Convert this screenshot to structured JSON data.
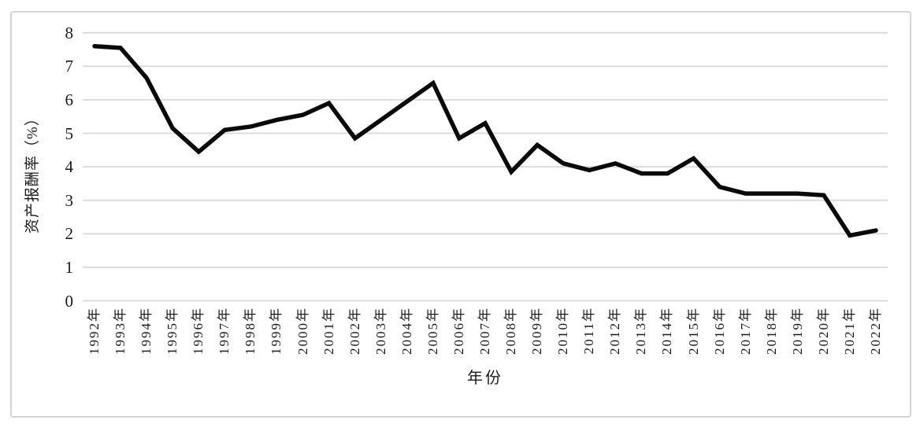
{
  "chart_data": {
    "type": "line",
    "xlabel": "年份",
    "ylabel": "资产报酬率（%）",
    "categories": [
      "1992年",
      "1993年",
      "1994年",
      "1995年",
      "1996年",
      "1997年",
      "1998年",
      "1999年",
      "2000年",
      "2001年",
      "2002年",
      "2003年",
      "2004年",
      "2005年",
      "2006年",
      "2007年",
      "2008年",
      "2009年",
      "2010年",
      "2011年",
      "2012年",
      "2013年",
      "2014年",
      "2015年",
      "2016年",
      "2017年",
      "2018年",
      "2019年",
      "2020年",
      "2021年",
      "2022年"
    ],
    "values": [
      7.6,
      7.55,
      6.65,
      5.15,
      4.45,
      5.1,
      5.2,
      5.4,
      5.55,
      5.9,
      4.85,
      5.4,
      5.95,
      6.5,
      4.85,
      5.3,
      3.85,
      4.65,
      4.1,
      3.9,
      4.1,
      3.8,
      3.8,
      4.25,
      3.4,
      3.2,
      3.2,
      3.2,
      3.15,
      1.95,
      2.1
    ],
    "yticks": [
      0,
      1,
      2,
      3,
      4,
      5,
      6,
      7,
      8
    ],
    "ylim": [
      0,
      8
    ],
    "grid": true,
    "legend": "none",
    "line_color": "#0a0a0a",
    "grid_color": "#d9d9d9",
    "text_color": "#1a1a1a",
    "frame_color": "#d4d4d4"
  }
}
